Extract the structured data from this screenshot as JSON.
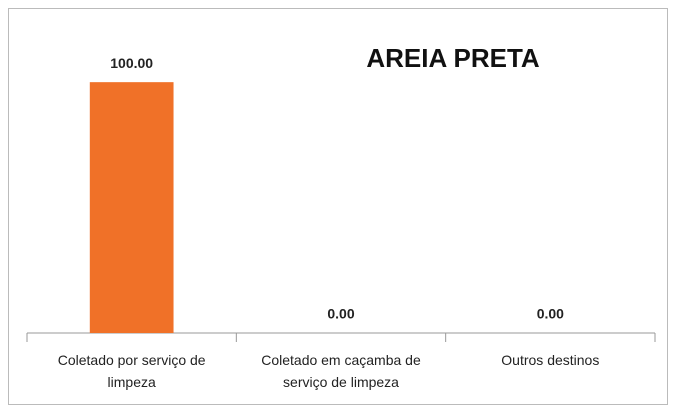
{
  "chart_data": {
    "type": "bar",
    "title": "AREIA PRETA",
    "categories": [
      "Coletado por serviço de limpeza",
      "Coletado em caçamba de serviço de limpeza",
      "Outros destinos"
    ],
    "values": [
      100,
      0,
      0
    ],
    "value_labels": [
      "100.00",
      "0.00",
      "0.00"
    ],
    "color": "#f07128",
    "ylim": [
      0,
      120
    ]
  }
}
